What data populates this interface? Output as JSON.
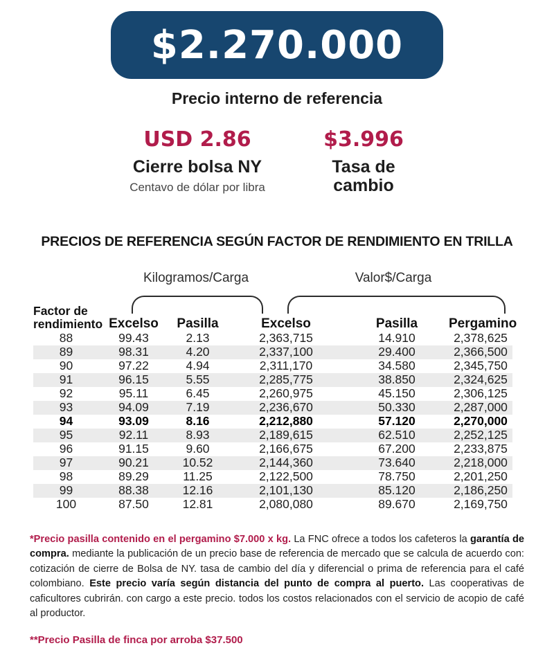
{
  "colors": {
    "navy": "#17466f",
    "accent": "#b11c4b",
    "band": "#ebebeb"
  },
  "hero": {
    "price": "$2.270.000",
    "label": "Precio interno de referencia"
  },
  "stats": {
    "ny": {
      "value": "USD 2.86",
      "title": "Cierre bolsa NY",
      "subtitle": "Centavo de dólar por libra"
    },
    "fx": {
      "value": "$3.996",
      "title": "Tasa de cambio"
    }
  },
  "table": {
    "title": "PRECIOS DE REFERENCIA SEGÚN FACTOR DE RENDIMIENTO EN TRILLA",
    "group_kg": "Kilogramos/Carga",
    "group_valor": "Valor$/Carga",
    "col_factor_line1": "Factor de",
    "col_factor_line2": "rendimiento",
    "col_excelso_kg": "Excelso",
    "col_pasilla_kg": "Pasilla",
    "col_excelso_valor": "Excelso",
    "col_pasilla_valor": "Pasilla",
    "col_pergamino": "Pergamino",
    "highlight_factor": "94",
    "rows": [
      {
        "factor": "88",
        "excelso_kg": "99.43",
        "pasilla_kg": "2.13",
        "excelso_valor": "2,363,715",
        "pasilla_valor": "14.910",
        "pergamino": "2,378,625"
      },
      {
        "factor": "89",
        "excelso_kg": "98.31",
        "pasilla_kg": "4.20",
        "excelso_valor": "2,337,100",
        "pasilla_valor": "29.400",
        "pergamino": "2,366,500"
      },
      {
        "factor": "90",
        "excelso_kg": "97.22",
        "pasilla_kg": "4.94",
        "excelso_valor": "2,311,170",
        "pasilla_valor": "34.580",
        "pergamino": "2,345,750"
      },
      {
        "factor": "91",
        "excelso_kg": "96.15",
        "pasilla_kg": "5.55",
        "excelso_valor": "2,285,775",
        "pasilla_valor": "38.850",
        "pergamino": "2,324,625"
      },
      {
        "factor": "92",
        "excelso_kg": "95.11",
        "pasilla_kg": "6.45",
        "excelso_valor": "2,260,975",
        "pasilla_valor": "45.150",
        "pergamino": "2,306,125"
      },
      {
        "factor": "93",
        "excelso_kg": "94.09",
        "pasilla_kg": "7.19",
        "excelso_valor": "2,236,670",
        "pasilla_valor": "50.330",
        "pergamino": "2,287,000"
      },
      {
        "factor": "94",
        "excelso_kg": "93.09",
        "pasilla_kg": "8.16",
        "excelso_valor": "2,212,880",
        "pasilla_valor": "57.120",
        "pergamino": "2,270,000"
      },
      {
        "factor": "95",
        "excelso_kg": "92.11",
        "pasilla_kg": "8.93",
        "excelso_valor": "2,189,615",
        "pasilla_valor": "62.510",
        "pergamino": "2,252,125"
      },
      {
        "factor": "96",
        "excelso_kg": "91.15",
        "pasilla_kg": "9.60",
        "excelso_valor": "2,166,675",
        "pasilla_valor": "67.200",
        "pergamino": "2,233,875"
      },
      {
        "factor": "97",
        "excelso_kg": "90.21",
        "pasilla_kg": "10.52",
        "excelso_valor": "2,144,360",
        "pasilla_valor": "73.640",
        "pergamino": "2,218,000"
      },
      {
        "factor": "98",
        "excelso_kg": "89.29",
        "pasilla_kg": "11.25",
        "excelso_valor": "2,122,500",
        "pasilla_valor": "78.750",
        "pergamino": "2,201,250"
      },
      {
        "factor": "99",
        "excelso_kg": "88.38",
        "pasilla_kg": "12.16",
        "excelso_valor": "2,101,130",
        "pasilla_valor": "85.120",
        "pergamino": "2,186,250"
      },
      {
        "factor": "100",
        "excelso_kg": "87.50",
        "pasilla_kg": "12.81",
        "excelso_valor": "2,080,080",
        "pasilla_valor": "89.670",
        "pergamino": "2,169,750"
      }
    ]
  },
  "notes": {
    "note1_segments": [
      {
        "style": "accent-bold",
        "text": "*Precio pasilla contenido en el pergamino $7.000 x kg. "
      },
      {
        "style": "regular",
        "text": "La FNC ofrece a todos los cafeteros la "
      },
      {
        "style": "bold",
        "text": "garantía de compra."
      },
      {
        "style": "regular",
        "text": " mediante la publicación de un precio base de referencia de mercado que se calcula de acuerdo con: cotización de cierre de Bolsa de NY. tasa de cambio del día y diferencial o prima de referencia para el café colombiano. "
      },
      {
        "style": "bold",
        "text": "Este precio varía según distancia del punto de compra al puerto."
      },
      {
        "style": "regular",
        "text": " Las cooperativas de caficultores cubrirán. con cargo a este precio. todos los costos relacionados con el servicio de acopio de café al productor."
      }
    ],
    "note2": "**Precio Pasilla de finca por arroba $37.500"
  }
}
